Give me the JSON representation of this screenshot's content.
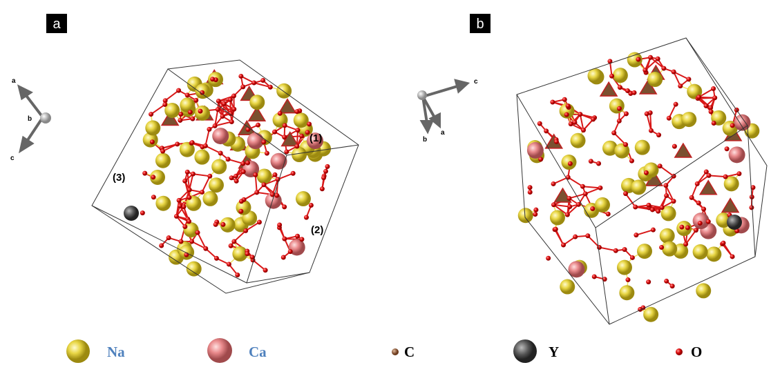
{
  "panels": [
    {
      "label": "a",
      "axes": [
        "a",
        "b",
        "c"
      ],
      "site_labels": [
        "(1)",
        "(2)",
        "(3)"
      ]
    },
    {
      "label": "b",
      "axes": [
        "c",
        "b",
        "a"
      ]
    }
  ],
  "legend": [
    {
      "label": "Na"
    },
    {
      "label": "Ca"
    },
    {
      "label": "C"
    },
    {
      "label": "Y"
    },
    {
      "label": "O"
    }
  ]
}
